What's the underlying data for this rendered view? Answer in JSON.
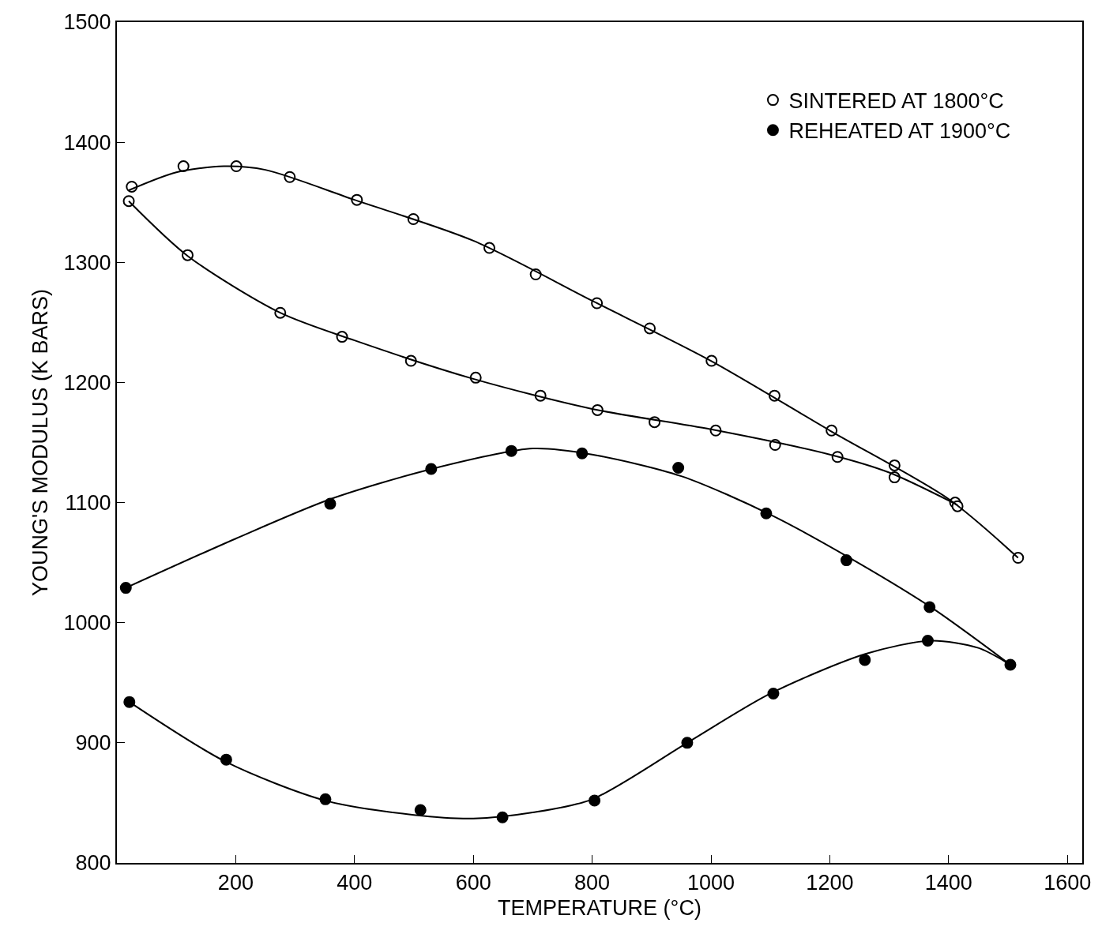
{
  "chart_data": {
    "type": "scatter",
    "xlabel": "TEMPERATURE (°C)",
    "ylabel": "YOUNG'S MODULUS (K BARS)",
    "xlim": [
      0,
      1625
    ],
    "xticks": [
      200,
      400,
      600,
      800,
      1000,
      1200,
      1400,
      1600
    ],
    "ylim": [
      800,
      1500
    ],
    "yticks": [
      800,
      900,
      1000,
      1100,
      1200,
      1300,
      1400,
      1500
    ],
    "grid": false,
    "legend": "top right",
    "marker": "circle",
    "series": [
      {
        "name": "SINTERED AT 1800°C",
        "color": "#ffffff",
        "x": [
          25,
          112,
          201,
          291,
          404,
          499,
          627,
          705,
          808,
          897,
          1001,
          1107,
          1203,
          1309,
          1411,
          1517,
          20,
          119,
          275,
          379,
          495,
          604,
          713,
          809,
          905,
          1008,
          1108,
          1213,
          1309,
          1415
        ],
        "values": [
          1363,
          1380,
          1380,
          1371,
          1352,
          1336,
          1312,
          1290,
          1266,
          1245,
          1218,
          1189,
          1160,
          1131,
          1100,
          1054,
          1351,
          1306,
          1258,
          1238,
          1218,
          1204,
          1189,
          1177,
          1167,
          1160,
          1148,
          1138,
          1121,
          1097
        ]
      },
      {
        "name": "REHEATED AT 1900°C",
        "color": "#000000",
        "x": [
          15,
          359,
          529,
          664,
          783,
          945,
          1093,
          1228,
          1368,
          1504,
          21,
          184,
          351,
          511,
          649,
          804,
          960,
          1105,
          1259,
          1365
        ],
        "values": [
          1029,
          1099,
          1128,
          1143,
          1141,
          1129,
          1091,
          1052,
          1013,
          965,
          934,
          886,
          853,
          844,
          838,
          852,
          900,
          941,
          969,
          985
        ]
      },
      {
        "type": "line",
        "color": "#000000",
        "marker": "none",
        "x": [
          20,
          100,
          180,
          250,
          400,
          600,
          800,
          1000,
          1200,
          1400,
          1517
        ],
        "values": [
          1360,
          1375,
          1380,
          1377,
          1352,
          1318,
          1268,
          1218,
          1160,
          1103,
          1054
        ]
      },
      {
        "type": "line",
        "color": "#000000",
        "marker": "none",
        "x": [
          20,
          120,
          275,
          400,
          600,
          800,
          1000,
          1200,
          1300,
          1415
        ],
        "values": [
          1351,
          1305,
          1258,
          1235,
          1203,
          1178,
          1161,
          1140,
          1125,
          1098
        ]
      },
      {
        "type": "line",
        "color": "#000000",
        "marker": "none",
        "x": [
          15,
          200,
          360,
          530,
          700,
          800,
          950,
          1100,
          1230,
          1370,
          1504
        ],
        "values": [
          1029,
          1070,
          1103,
          1128,
          1145,
          1140,
          1122,
          1090,
          1055,
          1013,
          965
        ]
      },
      {
        "type": "line",
        "color": "#000000",
        "marker": "none",
        "x": [
          21,
          184,
          350,
          500,
          600,
          700,
          800,
          960,
          1100,
          1260,
          1370,
          1450,
          1504
        ],
        "values": [
          934,
          884,
          852,
          840,
          837,
          842,
          853,
          900,
          941,
          974,
          985,
          979,
          965
        ]
      }
    ]
  }
}
